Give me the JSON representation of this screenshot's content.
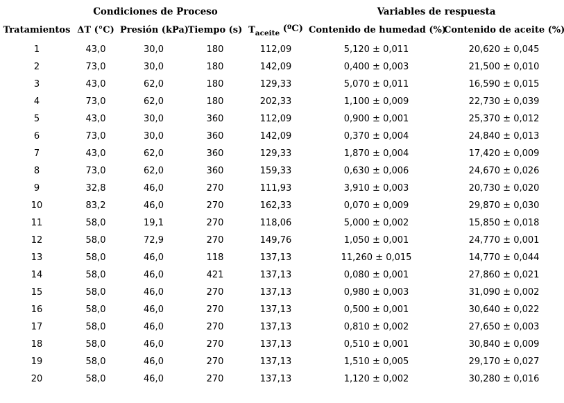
{
  "table": {
    "group_headers": [
      {
        "label": "Condiciones de Proceso",
        "colspan": 5
      },
      {
        "label": "Variables de respuesta",
        "colspan": 2
      }
    ],
    "columns": [
      {
        "key": "tratamientos",
        "label": "Tratamientos"
      },
      {
        "key": "delta-t",
        "label": "ΔT (°C)"
      },
      {
        "key": "presion",
        "label": "Presión (kPa)"
      },
      {
        "key": "tiempo",
        "label": "Tiempo (s)"
      },
      {
        "key": "t-aceite",
        "parts": {
          "base": "T",
          "sub": "aceite",
          "unit": "(ºC)"
        }
      },
      {
        "key": "humedad",
        "label": "Contenido de humedad (%)"
      },
      {
        "key": "aceite",
        "label": "Contenido de aceite (%)"
      }
    ],
    "rows": [
      [
        "1",
        "43,0",
        "30,0",
        "180",
        "112,09",
        "5,120 ± 0,011",
        "20,620 ± 0,045"
      ],
      [
        "2",
        "73,0",
        "30,0",
        "180",
        "142,09",
        "0,400 ± 0,003",
        "21,500 ± 0,010"
      ],
      [
        "3",
        "43,0",
        "62,0",
        "180",
        "129,33",
        "5,070 ± 0,011",
        "16,590 ± 0,015"
      ],
      [
        "4",
        "73,0",
        "62,0",
        "180",
        "202,33",
        "1,100 ± 0,009",
        "22,730 ± 0,039"
      ],
      [
        "5",
        "43,0",
        "30,0",
        "360",
        "112,09",
        "0,900 ± 0,001",
        "25,370 ± 0,012"
      ],
      [
        "6",
        "73,0",
        "30,0",
        "360",
        "142,09",
        "0,370 ± 0,004",
        "24,840 ± 0,013"
      ],
      [
        "7",
        "43,0",
        "62,0",
        "360",
        "129,33",
        "1,870 ± 0,004",
        "17,420 ± 0,009"
      ],
      [
        "8",
        "73,0",
        "62,0",
        "360",
        "159,33",
        "0,630 ± 0,006",
        "24,670 ± 0,026"
      ],
      [
        "9",
        "32,8",
        "46,0",
        "270",
        "111,93",
        "3,910 ± 0,003",
        "20,730 ± 0,020"
      ],
      [
        "10",
        "83,2",
        "46,0",
        "270",
        "162,33",
        "0,070 ± 0,009",
        "29,870 ± 0,030"
      ],
      [
        "11",
        "58,0",
        "19,1",
        "270",
        "118,06",
        "5,000 ± 0,002",
        "15,850 ± 0,018"
      ],
      [
        "12",
        "58,0",
        "72,9",
        "270",
        "149,76",
        "1,050 ± 0,001",
        "24,770 ± 0,001"
      ],
      [
        "13",
        "58,0",
        "46,0",
        "118",
        "137,13",
        "11,260 ± 0,015",
        "14,770 ± 0,044"
      ],
      [
        "14",
        "58,0",
        "46,0",
        "421",
        "137,13",
        "0,080 ± 0,001",
        "27,860 ± 0,021"
      ],
      [
        "15",
        "58,0",
        "46,0",
        "270",
        "137,13",
        "0,980 ± 0,003",
        "31,090 ± 0,002"
      ],
      [
        "16",
        "58,0",
        "46,0",
        "270",
        "137,13",
        "0,500 ± 0,001",
        "30,640 ± 0,022"
      ],
      [
        "17",
        "58,0",
        "46,0",
        "270",
        "137,13",
        "0,810 ± 0,002",
        "27,650 ± 0,003"
      ],
      [
        "18",
        "58,0",
        "46,0",
        "270",
        "137,13",
        "0,510 ± 0,001",
        "30,840 ± 0,009"
      ],
      [
        "19",
        "58,0",
        "46,0",
        "270",
        "137,13",
        "1,510 ± 0,005",
        "29,170 ± 0,027"
      ],
      [
        "20",
        "58,0",
        "46,0",
        "270",
        "137,13",
        "1,120 ± 0,002",
        "30,280 ± 0,016"
      ]
    ],
    "colors": {
      "background": "#ffffff",
      "text": "#000000"
    }
  }
}
